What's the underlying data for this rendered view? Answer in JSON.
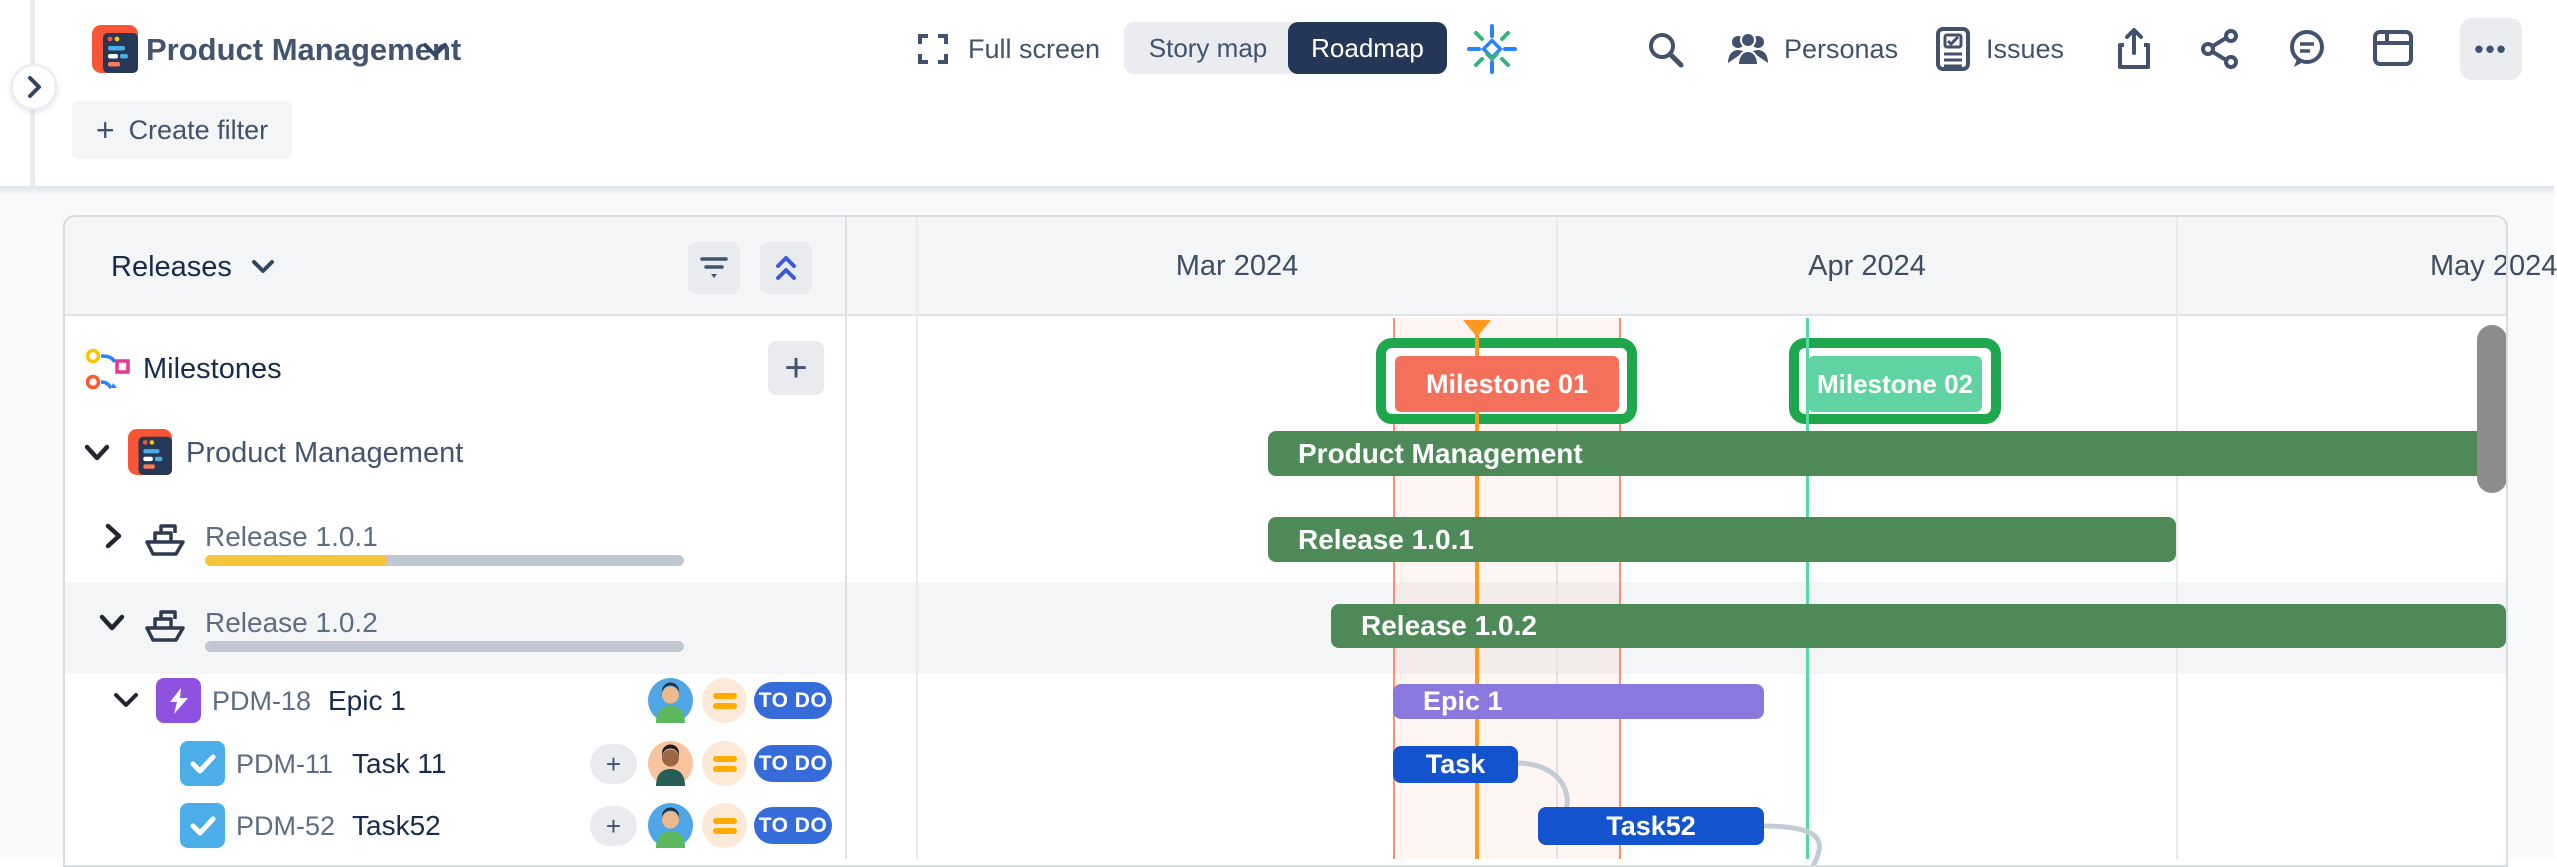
{
  "header": {
    "app_title": "Product Management",
    "full_screen_label": "Full screen",
    "view_tabs": {
      "story_map": "Story map",
      "roadmap": "Roadmap"
    },
    "personas_label": "Personas",
    "issues_label": "Issues",
    "more_label": "•••"
  },
  "filter_bar": {
    "create_filter_label": "Create filter",
    "plus_glyph": "+"
  },
  "left_panel": {
    "group_selector_label": "Releases",
    "milestones_label": "Milestones",
    "project_name": "Product Management",
    "releases": [
      {
        "name": "Release 1.0.1",
        "progress_percent": 38
      },
      {
        "name": "Release 1.0.2",
        "progress_percent": 0
      }
    ],
    "issues": [
      {
        "key": "PDM-18",
        "name": "Epic 1",
        "type": "epic",
        "status": "TO DO"
      },
      {
        "key": "PDM-11",
        "name": "Task 11",
        "type": "task",
        "status": "TO DO"
      },
      {
        "key": "PDM-52",
        "name": "Task52",
        "type": "task",
        "status": "TO DO"
      }
    ]
  },
  "timeline": {
    "months": [
      "Mar 2024",
      "Apr 2024",
      "May 2024"
    ],
    "milestones": [
      {
        "label": "Milestone 01",
        "color": "#F4705B"
      },
      {
        "label": "Milestone 02",
        "color": "#5FD3A2"
      }
    ],
    "bars": [
      {
        "label": "Product Management",
        "color": "#4E8A58"
      },
      {
        "label": "Release 1.0.1",
        "color": "#4E8A58"
      },
      {
        "label": "Release 1.0.2",
        "color": "#4E8A58"
      },
      {
        "label": "Epic 1",
        "color": "#8B78DE"
      },
      {
        "label": "Task",
        "color": "#1353CE"
      },
      {
        "label": "Task52",
        "color": "#1353CE"
      }
    ]
  },
  "colors": {
    "accent_green_bar": "#4E8A58",
    "epic_purple": "#8B78DE",
    "task_blue": "#1353CE",
    "selection_green": "#1FA74E",
    "milestone_marker_orange": "#FF991F",
    "status_badge_blue": "#366CD9",
    "progress_yellow": "#F7C43D",
    "segment_active_navy": "#243757"
  },
  "ui": {
    "plus": "+"
  }
}
